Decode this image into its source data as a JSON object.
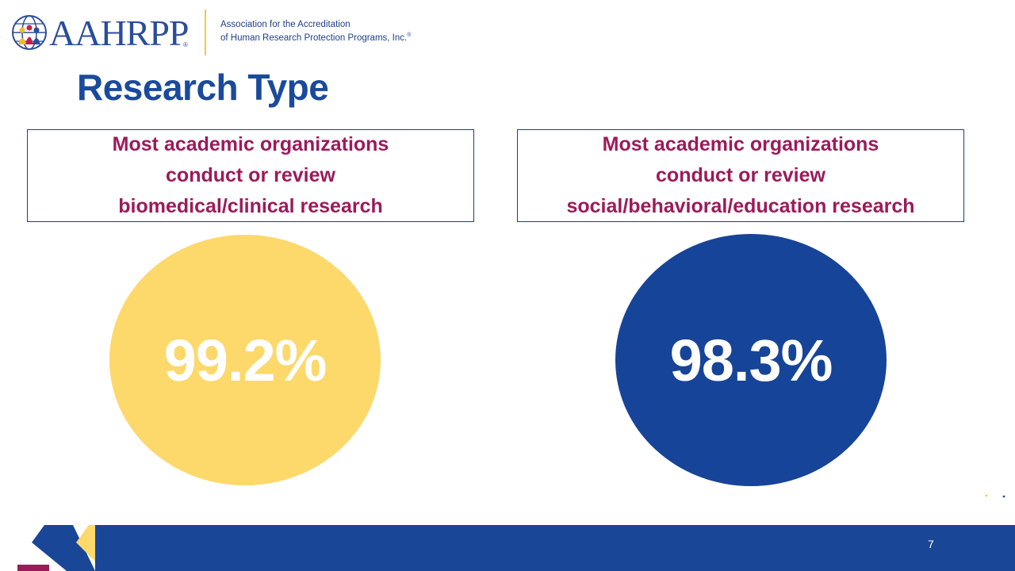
{
  "logo": {
    "wordmark": "AAHRPP",
    "registered": "®",
    "tagline_line1": "Association for the Accreditation",
    "tagline_line2": "of Human Research Protection Programs, Inc.",
    "tagline_mark": "®"
  },
  "slide": {
    "title": "Research Type",
    "page_number": "7"
  },
  "panels": [
    {
      "lines": [
        "Most academic organizations",
        "conduct or review",
        "biomedical/clinical research"
      ],
      "stat": "99.2%",
      "color": "#fdd86b"
    },
    {
      "lines": [
        "Most academic organizations",
        "conduct or review",
        "social/behavioral/education research"
      ],
      "stat": "98.3%",
      "color": "#164498"
    }
  ],
  "colors": {
    "title": "#1a4a9c",
    "caption": "#9b1b5a",
    "footer_blue": "#1a4698",
    "accent_yellow": "#fdd86b",
    "accent_magenta": "#9b1b5a"
  }
}
